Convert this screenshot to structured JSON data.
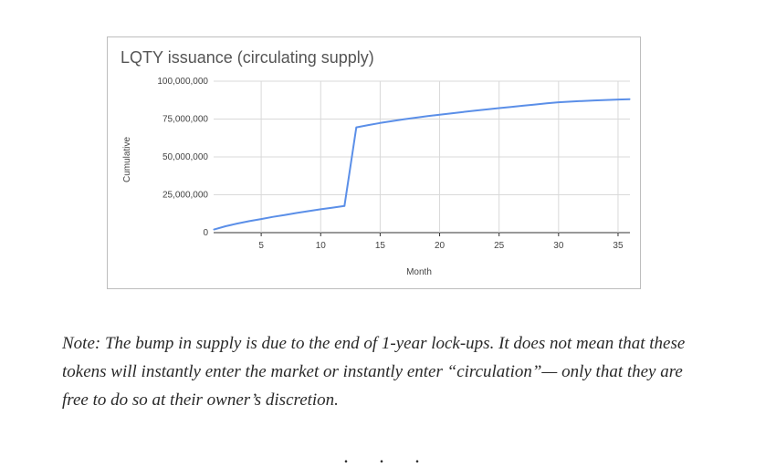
{
  "chart_data": {
    "type": "line",
    "title": "LQTY issuance (circulating supply)",
    "xlabel": "Month",
    "ylabel": "Cumulative",
    "xlim": [
      1,
      36
    ],
    "ylim": [
      0,
      100000000
    ],
    "x_ticks": [
      5,
      10,
      15,
      20,
      25,
      30,
      35
    ],
    "y_ticks": [
      0,
      25000000,
      50000000,
      75000000,
      100000000
    ],
    "y_tick_labels": [
      "0",
      "25,000,000",
      "50,000,000",
      "75,000,000",
      "100,000,000"
    ],
    "grid": true,
    "color": "#5b8fe8",
    "series": [
      {
        "x": [
          1,
          2,
          3,
          4,
          5,
          6,
          7,
          8,
          9,
          10,
          11,
          12,
          13,
          14,
          15,
          16,
          17,
          18,
          19,
          20,
          21,
          22,
          23,
          24,
          25,
          26,
          27,
          28,
          29,
          30,
          31,
          32,
          33,
          34,
          35,
          36
        ],
        "y": [
          2000000,
          4200000,
          6000000,
          7600000,
          9000000,
          10400000,
          11700000,
          13000000,
          14200000,
          15400000,
          16500000,
          17600000,
          69500000,
          71000000,
          72400000,
          73600000,
          74800000,
          75900000,
          76900000,
          77900000,
          78800000,
          79700000,
          80600000,
          81400000,
          82200000,
          83000000,
          83800000,
          84600000,
          85400000,
          86100000,
          86500000,
          86900000,
          87300000,
          87600000,
          87900000,
          88100000
        ]
      }
    ]
  },
  "note": "Note: The bump in supply is due to the end of 1-year lock-ups. It does not mean that these tokens will instantly enter the market or instantly enter “circulation”— only that they are free to do so at their owner’s discretion.",
  "separator": ". . ."
}
